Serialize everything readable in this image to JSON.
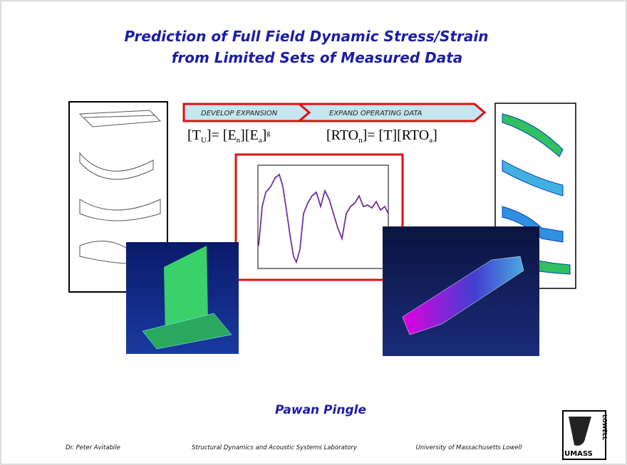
{
  "title": [
    "Prediction of Full Field Dynamic Stress/Strain",
    "from Limited Sets of Measured Data"
  ],
  "process": [
    "DEVELOP EXPANSION",
    "EXPAND OPERATING DATA"
  ],
  "equations": [
    {
      "parts": [
        "[T",
        "U",
        "]= [E",
        "n",
        "][E",
        "a",
        "]",
        "g"
      ]
    },
    {
      "parts": [
        "[RTO",
        "n",
        "]= [T][RTO",
        "a",
        "]"
      ]
    }
  ],
  "author": "Pawan Pingle",
  "footer": [
    "Dr. Peter Avitabile",
    "Structural Dynamics and Acoustic Systems Laboratory",
    "University of Massachusetts Lowell"
  ],
  "logo": [
    "UMASS",
    "LOWELL"
  ]
}
